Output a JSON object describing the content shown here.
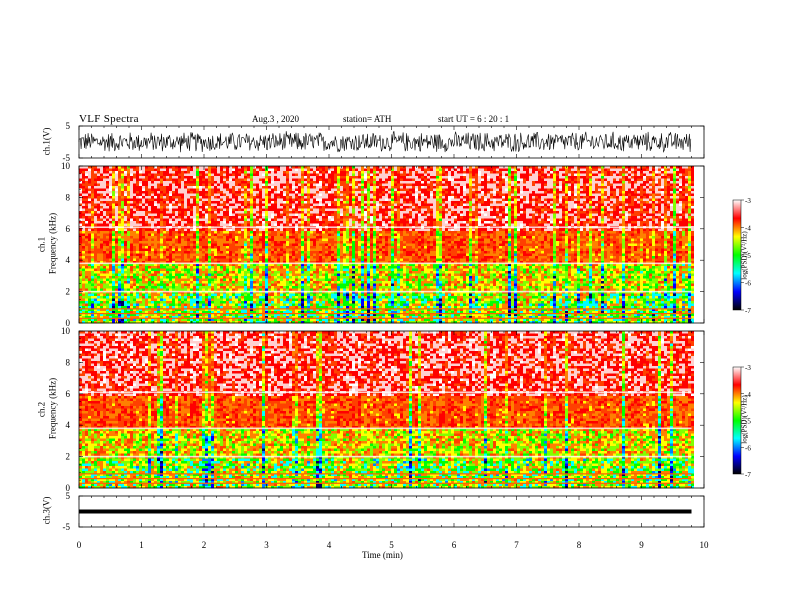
{
  "header": {
    "title": "VLF  Spectra",
    "date": "Aug.3  , 2020",
    "station": "station= ATH",
    "start": "start  UT  =    6  : 20 : 1"
  },
  "colorbar": {
    "label": "log(PSD)(V²/Hz)",
    "ticks": [
      "-3",
      "-4",
      "-5",
      "-6",
      "-7"
    ],
    "colors": [
      "#ffffff",
      "#ff0000",
      "#ffff00",
      "#00ff00",
      "#00ffff",
      "#0000ff",
      "#000000"
    ]
  },
  "chart_data": [
    {
      "type": "line",
      "name": "ch1-waveform",
      "ylabel": "ch.1(V)",
      "ylim": [
        -5,
        5
      ],
      "yticks": [
        "5",
        "-5"
      ],
      "amplitude_range": [
        -3.5,
        3.5
      ],
      "xlim": [
        0,
        10
      ],
      "data_end": 9.8
    },
    {
      "type": "heatmap",
      "name": "ch1-spectrogram",
      "ylabel_channel": "ch.1",
      "ylabel": "Frequency  (kHz)",
      "ylim": [
        0,
        10
      ],
      "yticks": [
        "0",
        "2",
        "4",
        "6",
        "8",
        "10"
      ],
      "xlim": [
        0,
        9.8
      ],
      "log_psd_range": [
        -7,
        -3
      ]
    },
    {
      "type": "heatmap",
      "name": "ch2-spectrogram",
      "ylabel_channel": "ch.2",
      "ylabel": "Frequency  (kHz)",
      "ylim": [
        0,
        10
      ],
      "yticks": [
        "0",
        "2",
        "4",
        "6",
        "8",
        "10"
      ],
      "xlim": [
        0,
        9.8
      ],
      "log_psd_range": [
        -7,
        -3
      ]
    },
    {
      "type": "line",
      "name": "ch3-waveform",
      "ylabel": "ch.3(V)",
      "ylim": [
        -5,
        5
      ],
      "yticks": [
        "5",
        "-5"
      ],
      "baseline": 0,
      "xlim": [
        0,
        10
      ],
      "data_end": 9.8
    }
  ],
  "xaxis": {
    "label": "Time  (min)",
    "ticks": [
      "0",
      "1",
      "2",
      "3",
      "4",
      "5",
      "6",
      "7",
      "8",
      "9",
      "10"
    ],
    "range": [
      0,
      10
    ]
  }
}
